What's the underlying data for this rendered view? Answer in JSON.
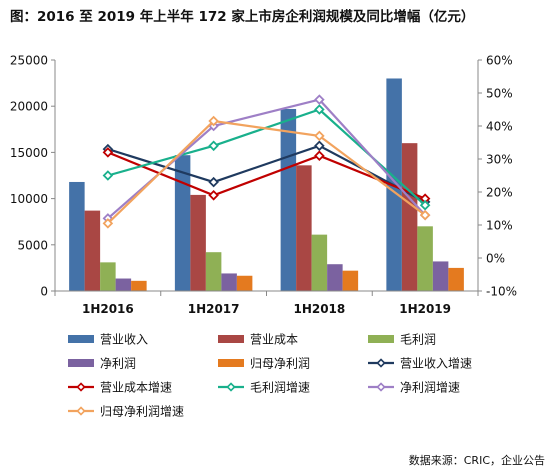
{
  "title": "图：2016 至 2019 年上半年 172 家上市房企利润规模及同比增幅（亿元）",
  "source": "数据来源：CRIC，企业公告",
  "chart_data": {
    "type": "bar",
    "categories": [
      "1H2016",
      "1H2017",
      "1H2018",
      "1H2019"
    ],
    "left_axis": {
      "min": 0,
      "max": 25000,
      "step": 5000,
      "ticks": [
        "0",
        "5000",
        "10000",
        "15000",
        "20000",
        "25000"
      ]
    },
    "right_axis": {
      "min": -10,
      "max": 60,
      "step": 10,
      "ticks": [
        "-10%",
        "0%",
        "10%",
        "20%",
        "30%",
        "40%",
        "50%",
        "60%"
      ]
    },
    "bar_series": [
      {
        "name": "营业收入",
        "color": "#4472A8",
        "values": [
          11800,
          14700,
          19700,
          23000
        ]
      },
      {
        "name": "营业成本",
        "color": "#A94744",
        "values": [
          8700,
          10400,
          13600,
          16000
        ]
      },
      {
        "name": "毛利润",
        "color": "#8FB055",
        "values": [
          3100,
          4200,
          6100,
          7000
        ]
      },
      {
        "name": "净利润",
        "color": "#7B62A0",
        "values": [
          1350,
          1900,
          2900,
          3200
        ]
      },
      {
        "name": "归母净利润",
        "color": "#E47A1F",
        "values": [
          1100,
          1650,
          2200,
          2500
        ]
      }
    ],
    "line_series": [
      {
        "name": "营业收入增速",
        "color": "#1F3A5F",
        "values": [
          33,
          23,
          34,
          17
        ]
      },
      {
        "name": "营业成本增速",
        "color": "#C00000",
        "values": [
          32,
          19,
          31,
          18
        ]
      },
      {
        "name": "毛利润增速",
        "color": "#19B08C",
        "values": [
          25,
          34,
          45,
          16
        ]
      },
      {
        "name": "净利润增速",
        "color": "#9E7FC6",
        "values": [
          12,
          40,
          48,
          13
        ]
      },
      {
        "name": "归母净利润增速",
        "color": "#F2A35E",
        "values": [
          10.5,
          41.5,
          37,
          13
        ]
      }
    ],
    "legend_position": "bottom",
    "grid": false
  }
}
